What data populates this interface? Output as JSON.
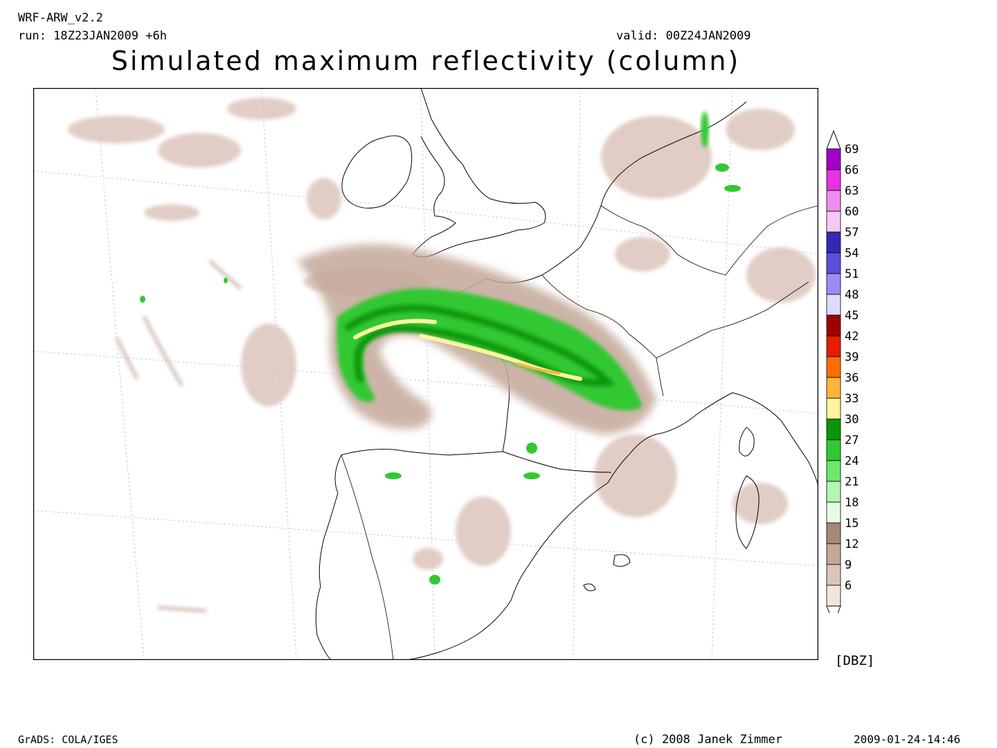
{
  "header": {
    "model": "WRF-ARW_v2.2",
    "run": "run: 18Z23JAN2009 +6h",
    "valid": "valid: 00Z24JAN2009",
    "title": "Simulated maximum reflectivity (column)"
  },
  "legend": {
    "units": "[DBZ]",
    "levels": [
      {
        "label": "69",
        "color": "#a000c8"
      },
      {
        "label": "66",
        "color": "#e632e6"
      },
      {
        "label": "63",
        "color": "#f08cf0"
      },
      {
        "label": "60",
        "color": "#f5c8f5"
      },
      {
        "label": "57",
        "color": "#3228b4"
      },
      {
        "label": "54",
        "color": "#5a50dc"
      },
      {
        "label": "51",
        "color": "#9b8cf5"
      },
      {
        "label": "48",
        "color": "#dcdcfa"
      },
      {
        "label": "45",
        "color": "#a00000"
      },
      {
        "label": "42",
        "color": "#e61e00"
      },
      {
        "label": "39",
        "color": "#ff6e00"
      },
      {
        "label": "36",
        "color": "#ffb43c"
      },
      {
        "label": "33",
        "color": "#fff5a0"
      },
      {
        "label": "30",
        "color": "#0a960a"
      },
      {
        "label": "27",
        "color": "#32c832"
      },
      {
        "label": "24",
        "color": "#6ee66e"
      },
      {
        "label": "21",
        "color": "#b4f5b4"
      },
      {
        "label": "18",
        "color": "#e6fae6"
      },
      {
        "label": "15",
        "color": "#a58878"
      },
      {
        "label": "12",
        "color": "#c4a89a"
      },
      {
        "label": "9",
        "color": "#dcc5bb"
      },
      {
        "label": "6",
        "color": "#f3e4de"
      }
    ]
  },
  "footer": {
    "software": "GrADS: COLA/IGES",
    "copyright": "(c) 2008 Janek Zimmer",
    "timestamp": "2009-01-24-14:46"
  }
}
